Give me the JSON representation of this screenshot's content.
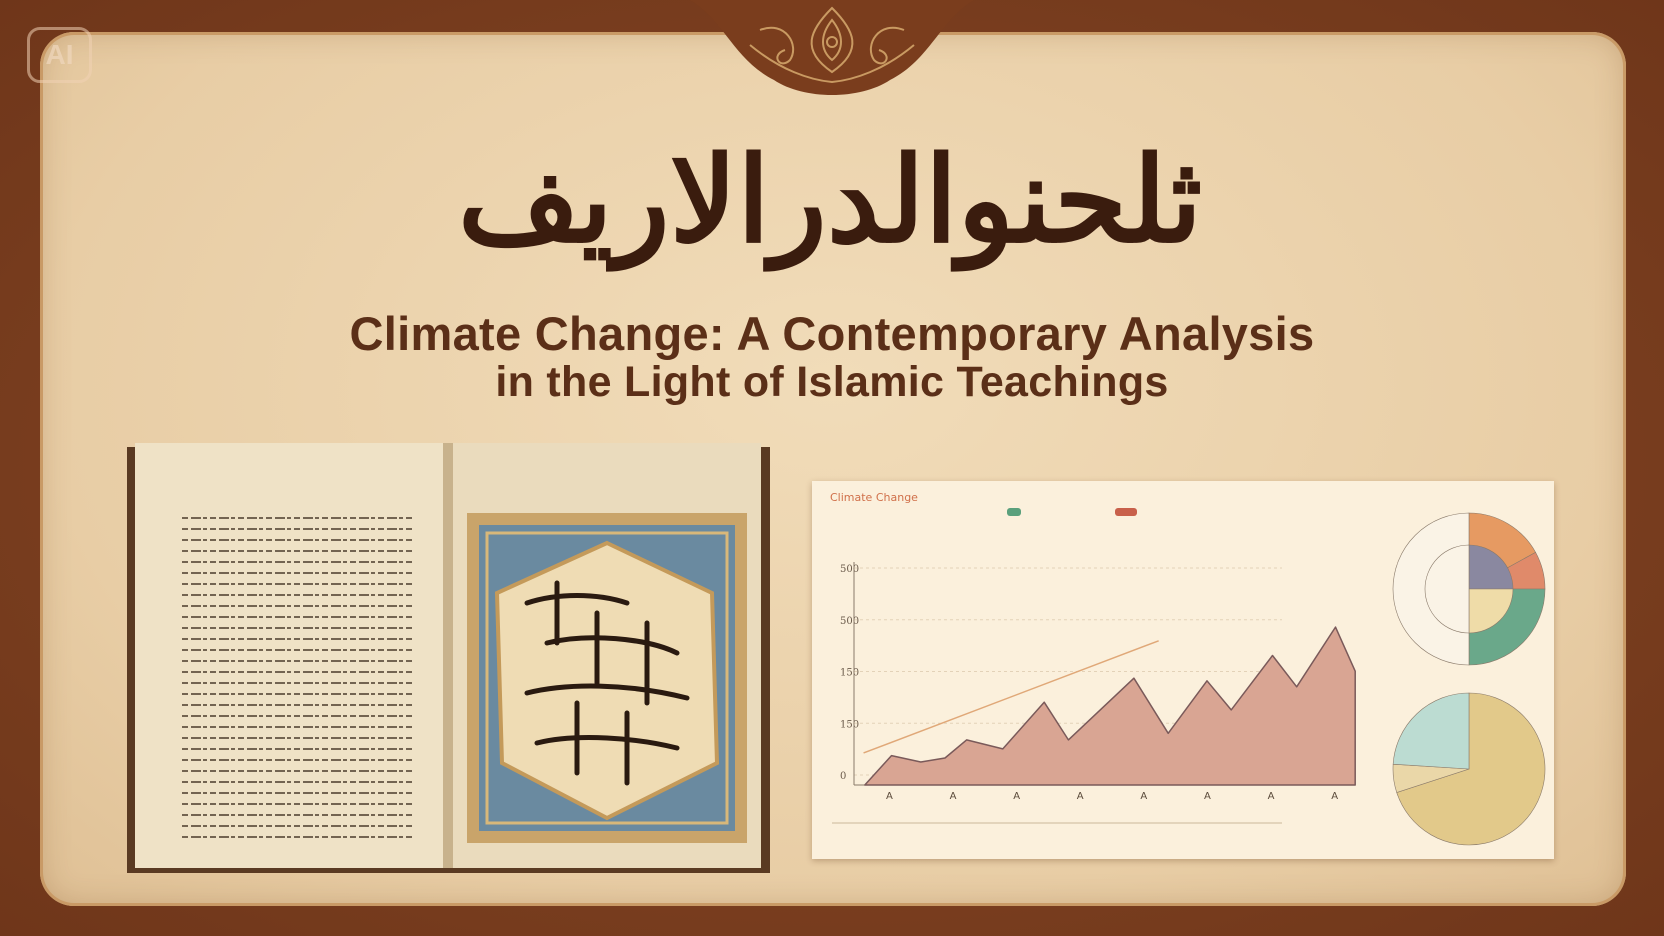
{
  "badge": {
    "label": "AI"
  },
  "title": {
    "calligraphy": "ثلحنوالدرالاريف",
    "line1": "Climate Change: A Contemporary Analysis",
    "line2": "in the Light of Islamic Teachings"
  },
  "colors": {
    "frame": "#7a3d1d",
    "parchment": "#ecd3ad",
    "title": "#5b2f18",
    "area_fill": "#d9a593",
    "trend_line": "#e0a878",
    "legend_green": "#5aa07c",
    "legend_red": "#c8604a"
  },
  "chart_data": {
    "type": "area",
    "title": "Climate Change",
    "ylim": [
      0,
      650
    ],
    "ytick_labels": [
      "0",
      "150",
      "150",
      "500",
      "500"
    ],
    "xtick_labels": [
      "A",
      "A",
      "A",
      "A",
      "A",
      "A",
      "A",
      "A"
    ],
    "grid": true,
    "legend": "top",
    "series": [
      {
        "type": "area",
        "points": [
          [
            -0.38,
            0
          ],
          [
            0.04,
            88
          ],
          [
            0.5,
            69
          ],
          [
            0.88,
            81
          ],
          [
            1.22,
            135
          ],
          [
            1.79,
            108
          ],
          [
            2.44,
            248
          ],
          [
            2.82,
            135
          ],
          [
            3.85,
            320
          ],
          [
            4.39,
            155
          ],
          [
            5.0,
            312
          ],
          [
            5.38,
            225
          ],
          [
            6.03,
            388
          ],
          [
            6.41,
            294
          ],
          [
            7.02,
            473
          ],
          [
            7.33,
            341
          ]
        ]
      },
      {
        "type": "line",
        "points": [
          [
            -0.4,
            96
          ],
          [
            4.24,
            432
          ]
        ]
      }
    ],
    "pies": [
      {
        "slices": [
          {
            "color": "#e69a62",
            "value": 17
          },
          {
            "color": "#e08a6a",
            "value": 8
          },
          {
            "color": "#6aa88a",
            "value": 25
          },
          {
            "color": "#faf3e6",
            "value": 50
          }
        ],
        "inner": [
          {
            "color": "#8a88a0",
            "value": 25
          },
          {
            "color": "#efdca8",
            "value": 25
          }
        ]
      },
      {
        "slices": [
          {
            "color": "#e2c98a",
            "value": 70
          },
          {
            "color": "#ead7a8",
            "value": 6
          },
          {
            "color": "#bcdcd2",
            "value": 24
          }
        ]
      }
    ]
  }
}
